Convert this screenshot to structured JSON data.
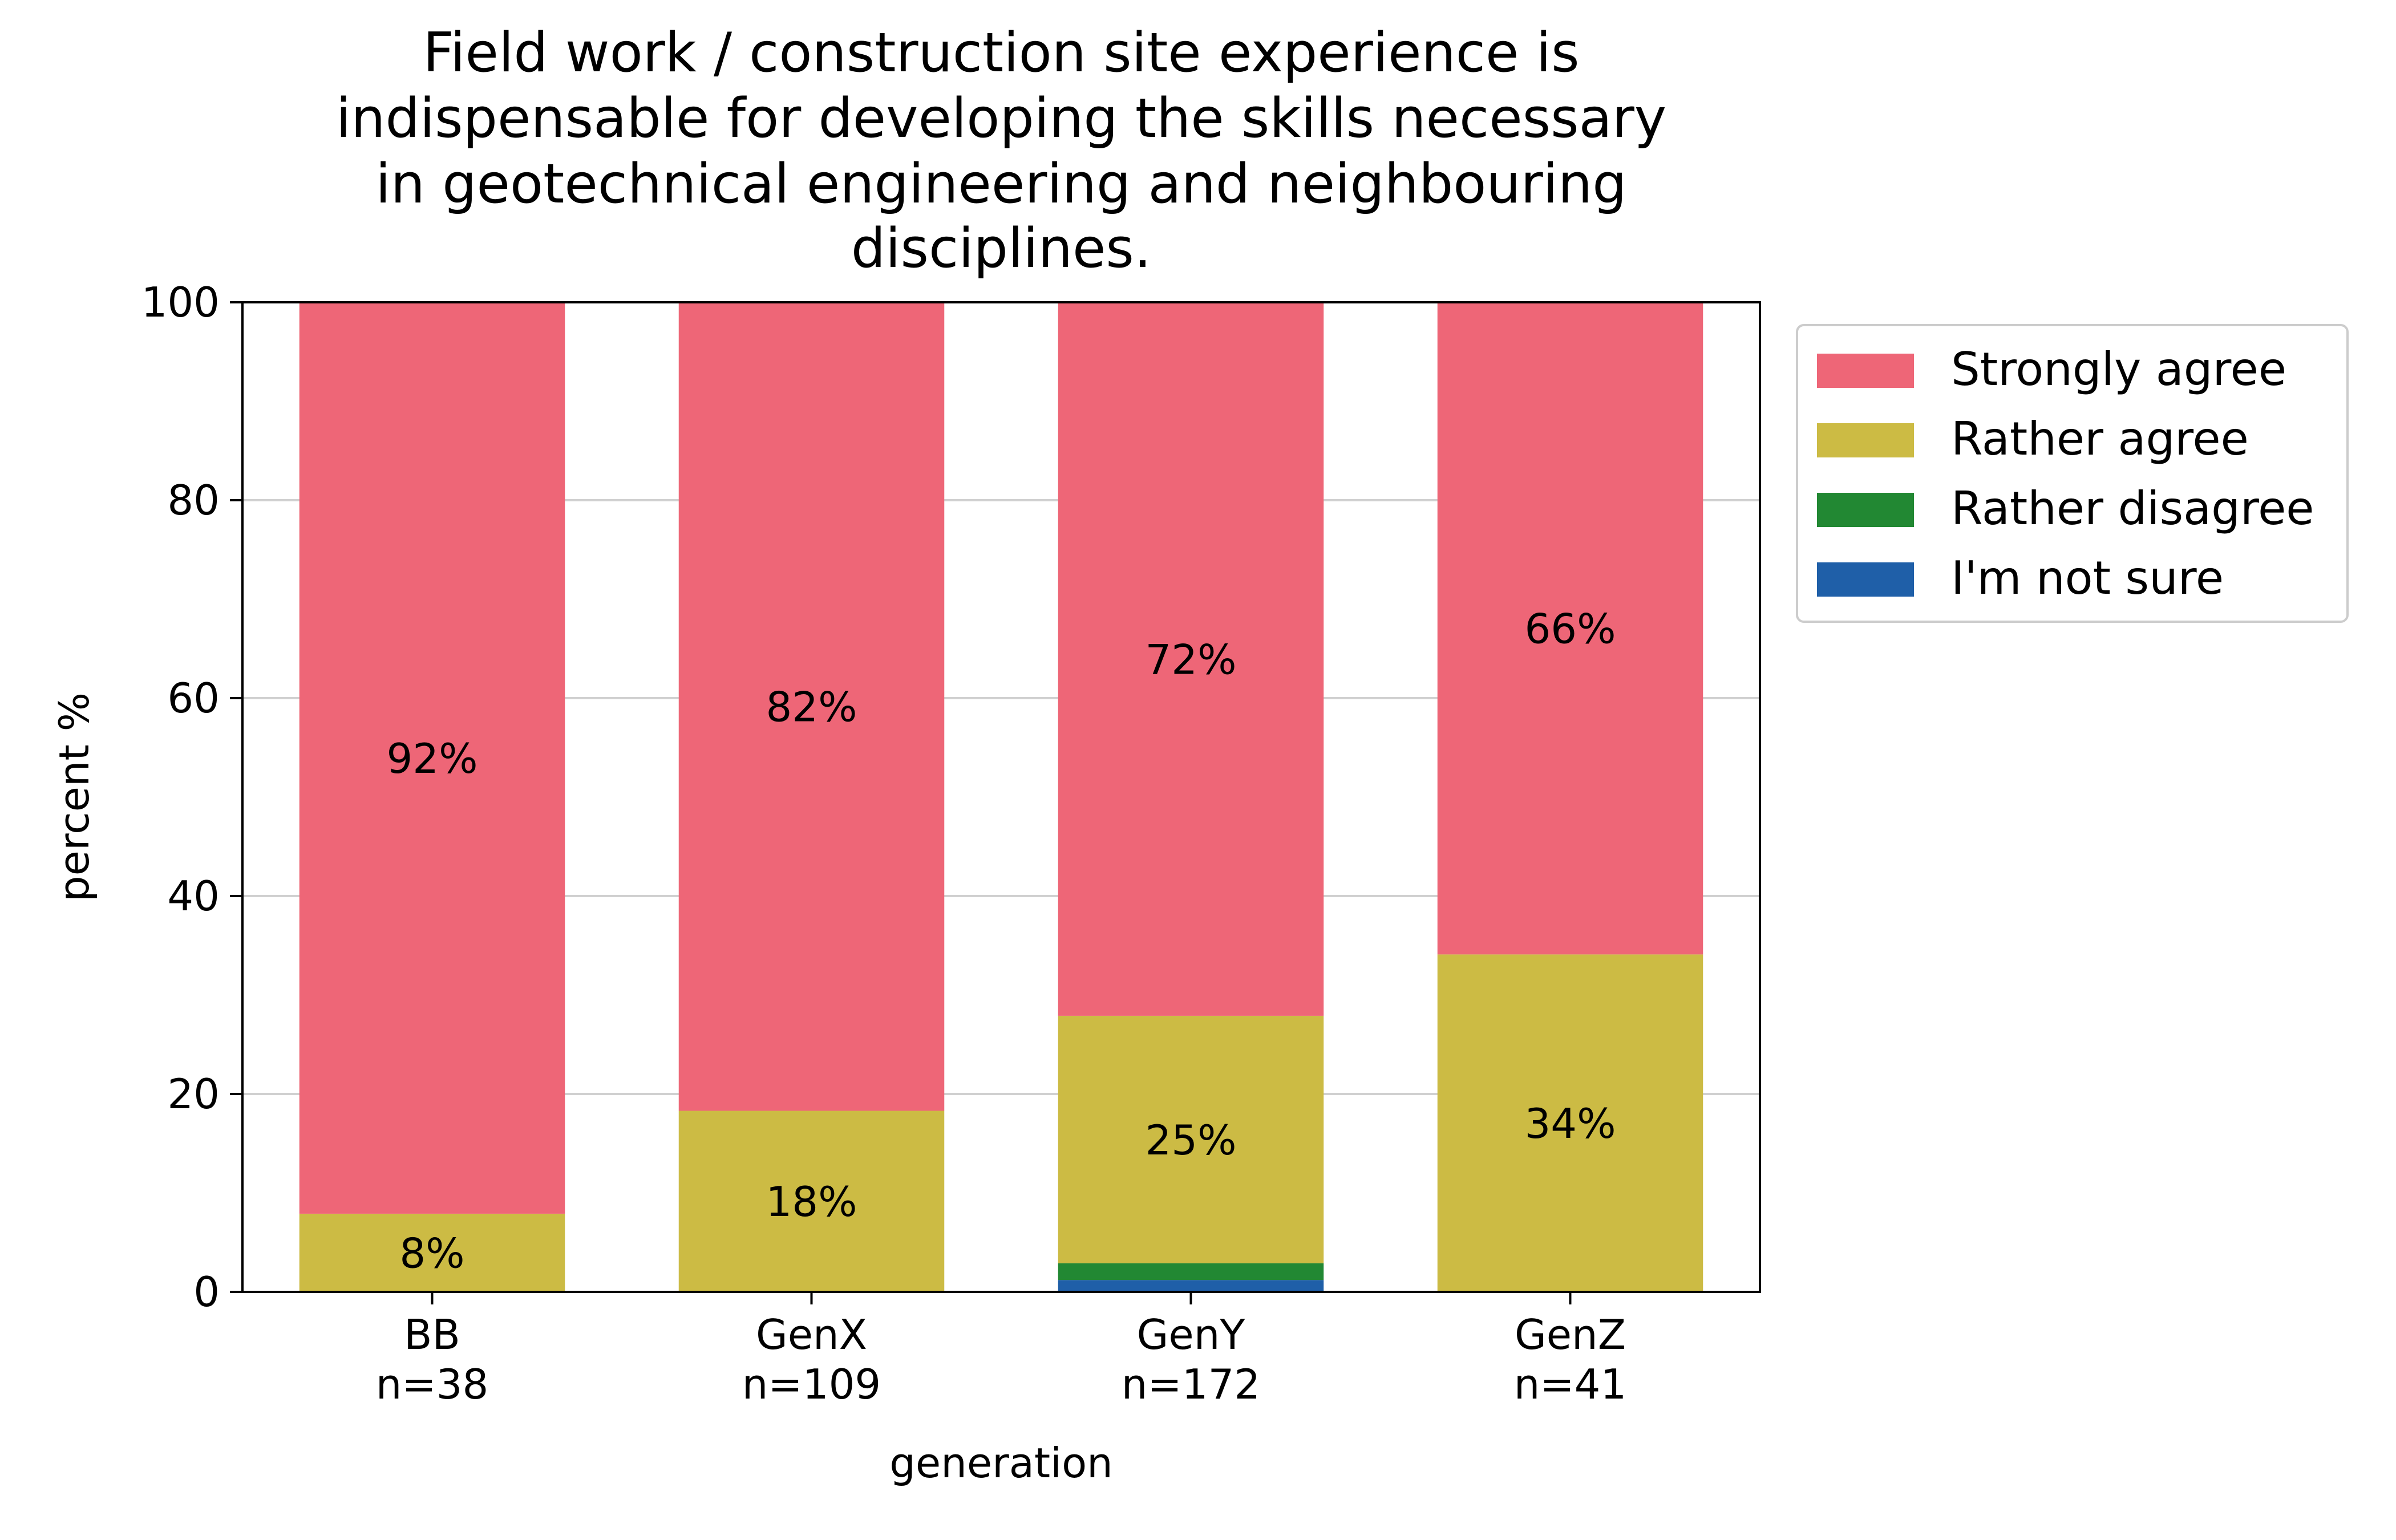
{
  "chart_data": {
    "type": "bar",
    "stacked": true,
    "title_lines": [
      "Field work / construction site experience is",
      "indispensable for developing the skills necessary",
      "in geotechnical engineering and neighbouring",
      "disciplines."
    ],
    "xlabel": "generation",
    "ylabel": "percent %",
    "ylim": [
      0,
      100
    ],
    "yticks": [
      0,
      20,
      40,
      60,
      80,
      100
    ],
    "grid": "horizontal",
    "legend_position": "outside right, top",
    "categories": [
      "BB",
      "GenX",
      "GenY",
      "GenZ"
    ],
    "category_counts": [
      "n=38",
      "n=109",
      "n=172",
      "n=41"
    ],
    "series": [
      {
        "name": "I'm not sure",
        "color": "#1f5fa8",
        "values": [
          0,
          0,
          1.2,
          0
        ],
        "labels": [
          "",
          "",
          "",
          ""
        ]
      },
      {
        "name": "Rather disagree",
        "color": "#228833",
        "values": [
          0,
          0,
          1.7,
          0
        ],
        "labels": [
          "",
          "",
          "",
          ""
        ]
      },
      {
        "name": "Rather agree",
        "color": "#ccbb44",
        "values": [
          7.9,
          18.3,
          25.0,
          34.1
        ],
        "labels": [
          "8%",
          "18%",
          "25%",
          "34%"
        ]
      },
      {
        "name": "Strongly agree",
        "color": "#ee6677",
        "values": [
          92.1,
          81.7,
          72.1,
          65.9
        ],
        "labels": [
          "92%",
          "82%",
          "72%",
          "66%"
        ]
      }
    ],
    "legend_order": [
      "Strongly agree",
      "Rather agree",
      "Rather disagree",
      "I'm not sure"
    ]
  }
}
